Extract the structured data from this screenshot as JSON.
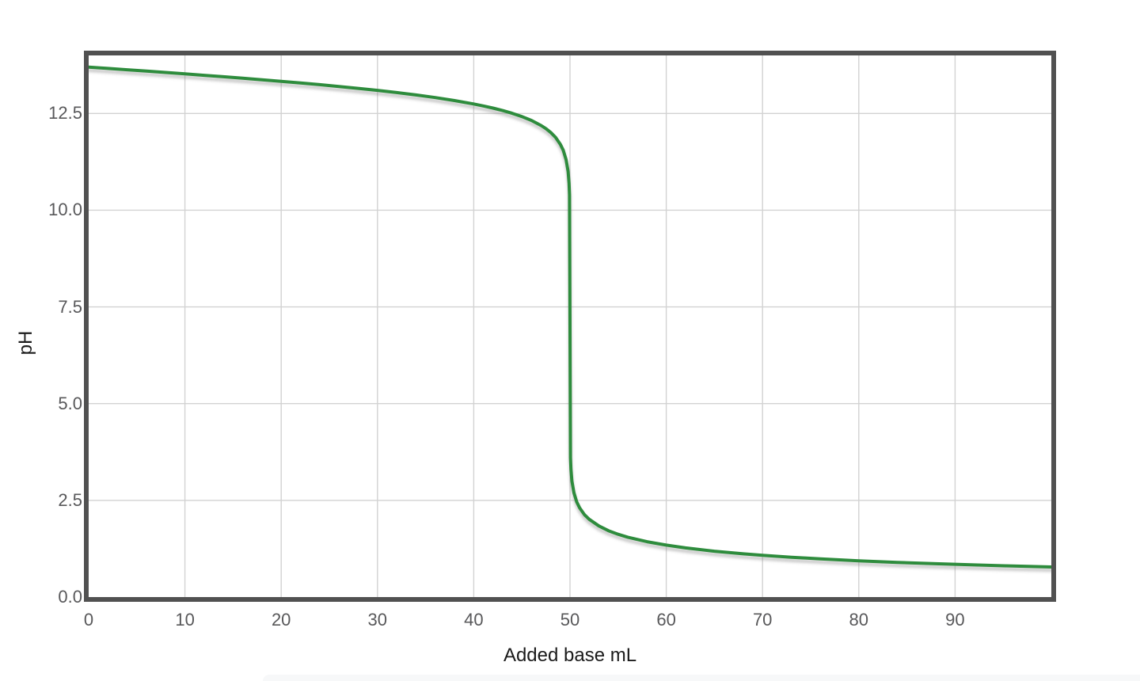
{
  "chart_data": {
    "type": "line",
    "xlabel": "Added base mL",
    "ylabel": "pH",
    "xlim": [
      0,
      100
    ],
    "ylim": [
      0,
      14
    ],
    "x_ticks": [
      0,
      10,
      20,
      30,
      40,
      50,
      60,
      70,
      80,
      90
    ],
    "x_tick_labels": [
      "0",
      "10",
      "20",
      "30",
      "40",
      "50",
      "60",
      "70",
      "80",
      "90"
    ],
    "y_ticks": [
      0,
      2.5,
      5,
      7.5,
      10,
      12.5
    ],
    "y_tick_labels": [
      "0.0",
      "2.5",
      "5.0",
      "7.5",
      "10.0",
      "12.5"
    ],
    "grid": true,
    "legend": false,
    "series": [
      {
        "name": "titration-curve",
        "color": "#2e8c3c",
        "width": 4,
        "points": [
          [
            0,
            13.699
          ],
          [
            2,
            13.664
          ],
          [
            4,
            13.629
          ],
          [
            6,
            13.594
          ],
          [
            8,
            13.559
          ],
          [
            10,
            13.523
          ],
          [
            12,
            13.486
          ],
          [
            14,
            13.449
          ],
          [
            16,
            13.411
          ],
          [
            18,
            13.372
          ],
          [
            20,
            13.331
          ],
          [
            22,
            13.289
          ],
          [
            24,
            13.245
          ],
          [
            26,
            13.198
          ],
          [
            28,
            13.149
          ],
          [
            30,
            13.097
          ],
          [
            32,
            13.04
          ],
          [
            34,
            12.979
          ],
          [
            36,
            12.911
          ],
          [
            38,
            12.834
          ],
          [
            40,
            12.745
          ],
          [
            41,
            12.694
          ],
          [
            42,
            12.638
          ],
          [
            43,
            12.576
          ],
          [
            44,
            12.504
          ],
          [
            45,
            12.42
          ],
          [
            46,
            12.319
          ],
          [
            47,
            12.189
          ],
          [
            47.5,
            12.108
          ],
          [
            48,
            12.009
          ],
          [
            48.5,
            11.882
          ],
          [
            49,
            11.703
          ],
          [
            49.3,
            11.547
          ],
          [
            49.6,
            11.303
          ],
          [
            49.8,
            11.001
          ],
          [
            49.9,
            10.699
          ],
          [
            49.95,
            10.398
          ],
          [
            50,
            7.0
          ],
          [
            50.05,
            3.602
          ],
          [
            50.1,
            3.301
          ],
          [
            50.2,
            3.001
          ],
          [
            50.4,
            2.701
          ],
          [
            50.7,
            2.459
          ],
          [
            51,
            2.305
          ],
          [
            51.5,
            2.131
          ],
          [
            52,
            2.009
          ],
          [
            53,
            1.837
          ],
          [
            54,
            1.716
          ],
          [
            55,
            1.623
          ],
          [
            56,
            1.548
          ],
          [
            58,
            1.431
          ],
          [
            60,
            1.342
          ],
          [
            62,
            1.271
          ],
          [
            65,
            1.186
          ],
          [
            68,
            1.118
          ],
          [
            70,
            1.079
          ],
          [
            73,
            1.029
          ],
          [
            76,
            0.986
          ],
          [
            80,
            0.938
          ],
          [
            84,
            0.897
          ],
          [
            88,
            0.861
          ],
          [
            92,
            0.83
          ],
          [
            96,
            0.803
          ],
          [
            100,
            0.778
          ]
        ]
      }
    ],
    "style": {
      "background": "#ffffff",
      "grid_color": "#d2d2d2",
      "spine_color": "#515151",
      "tick_label_color": "#58585a",
      "axis_label_color": "#1b1b1b",
      "shadow_color": "#7f7f7f",
      "footer_strip_color": "#f7f8f9"
    }
  }
}
